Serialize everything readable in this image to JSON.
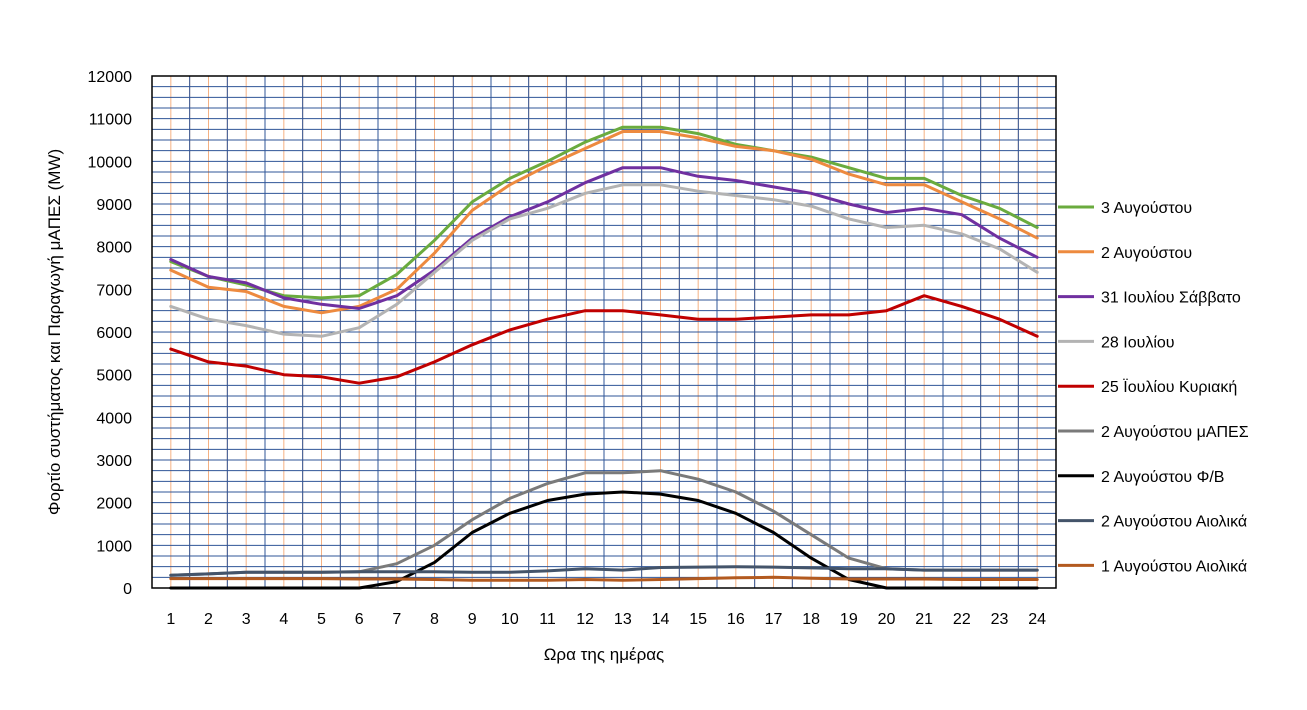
{
  "chart_data": {
    "type": "line",
    "xlabel": "Ωρα της ημέρας",
    "ylabel": "Φορτίο συστήματος και Παραγωγή  μΑΠΕΣ  (MW)",
    "ylim": [
      0,
      12000
    ],
    "yticks": [
      0,
      1000,
      2000,
      3000,
      4000,
      5000,
      6000,
      7000,
      8000,
      9000,
      10000,
      11000,
      12000
    ],
    "x": [
      1,
      2,
      3,
      4,
      5,
      6,
      7,
      8,
      9,
      10,
      11,
      12,
      13,
      14,
      15,
      16,
      17,
      18,
      19,
      20,
      21,
      22,
      23,
      24
    ],
    "grid": true,
    "legend_position": "right",
    "series": [
      {
        "name": "3 Αυγούστου",
        "color": "#6aab3e",
        "values": [
          7650,
          7300,
          7100,
          6850,
          6800,
          6850,
          7350,
          8150,
          9050,
          9600,
          10000,
          10450,
          10800,
          10800,
          10650,
          10400,
          10250,
          10100,
          9850,
          9600,
          9600,
          9200,
          8900,
          8450
        ]
      },
      {
        "name": "2 Αυγούστου",
        "color": "#ed8a3f",
        "values": [
          7450,
          7050,
          6950,
          6600,
          6450,
          6600,
          7000,
          7850,
          8850,
          9450,
          9900,
          10300,
          10700,
          10700,
          10550,
          10350,
          10250,
          10050,
          9700,
          9450,
          9450,
          9050,
          8650,
          8200
        ]
      },
      {
        "name": "31 Ιουλίου Σάββατο",
        "color": "#7030a0",
        "values": [
          7700,
          7300,
          7150,
          6800,
          6650,
          6550,
          6850,
          7450,
          8200,
          8700,
          9050,
          9500,
          9850,
          9850,
          9650,
          9550,
          9400,
          9250,
          9000,
          8800,
          8900,
          8750,
          8200,
          7750
        ]
      },
      {
        "name": "28 Ιουλίου",
        "color": "#b3b3b3",
        "values": [
          6600,
          6300,
          6150,
          5950,
          5900,
          6100,
          6650,
          7400,
          8150,
          8650,
          8900,
          9250,
          9450,
          9450,
          9300,
          9200,
          9100,
          8950,
          8650,
          8450,
          8500,
          8300,
          7950,
          7400
        ]
      },
      {
        "name": "25 Ϊουλίου Κυριακή",
        "color": "#c00000",
        "values": [
          5600,
          5300,
          5200,
          5000,
          4950,
          4800,
          4950,
          5300,
          5700,
          6050,
          6300,
          6500,
          6500,
          6400,
          6300,
          6300,
          6350,
          6400,
          6400,
          6500,
          6850,
          6600,
          6300,
          5900
        ]
      },
      {
        "name": "2 Αυγούστου μΑΠΕΣ",
        "color": "#7a7a7a",
        "values": [
          300,
          330,
          370,
          370,
          370,
          380,
          570,
          1000,
          1600,
          2100,
          2450,
          2700,
          2700,
          2750,
          2550,
          2250,
          1800,
          1250,
          700,
          450,
          420,
          420,
          420,
          420
        ]
      },
      {
        "name": "2 Αυγούστου Φ/Β",
        "color": "#000000",
        "values": [
          0,
          0,
          0,
          0,
          0,
          0,
          150,
          600,
          1300,
          1750,
          2050,
          2200,
          2250,
          2200,
          2050,
          1750,
          1300,
          700,
          200,
          0,
          0,
          0,
          0,
          0
        ]
      },
      {
        "name": "2 Αυγούστου Αιολικά",
        "color": "#44546a",
        "values": [
          300,
          330,
          370,
          370,
          370,
          380,
          380,
          380,
          370,
          370,
          400,
          450,
          420,
          480,
          490,
          500,
          490,
          470,
          450,
          450,
          420,
          420,
          420,
          420
        ]
      },
      {
        "name": "1 Αυγούστου Αιολικά",
        "color": "#b35a1f",
        "values": [
          220,
          220,
          220,
          220,
          220,
          210,
          210,
          200,
          180,
          180,
          180,
          200,
          180,
          200,
          220,
          240,
          250,
          230,
          210,
          210,
          210,
          200,
          200,
          200
        ]
      }
    ]
  }
}
